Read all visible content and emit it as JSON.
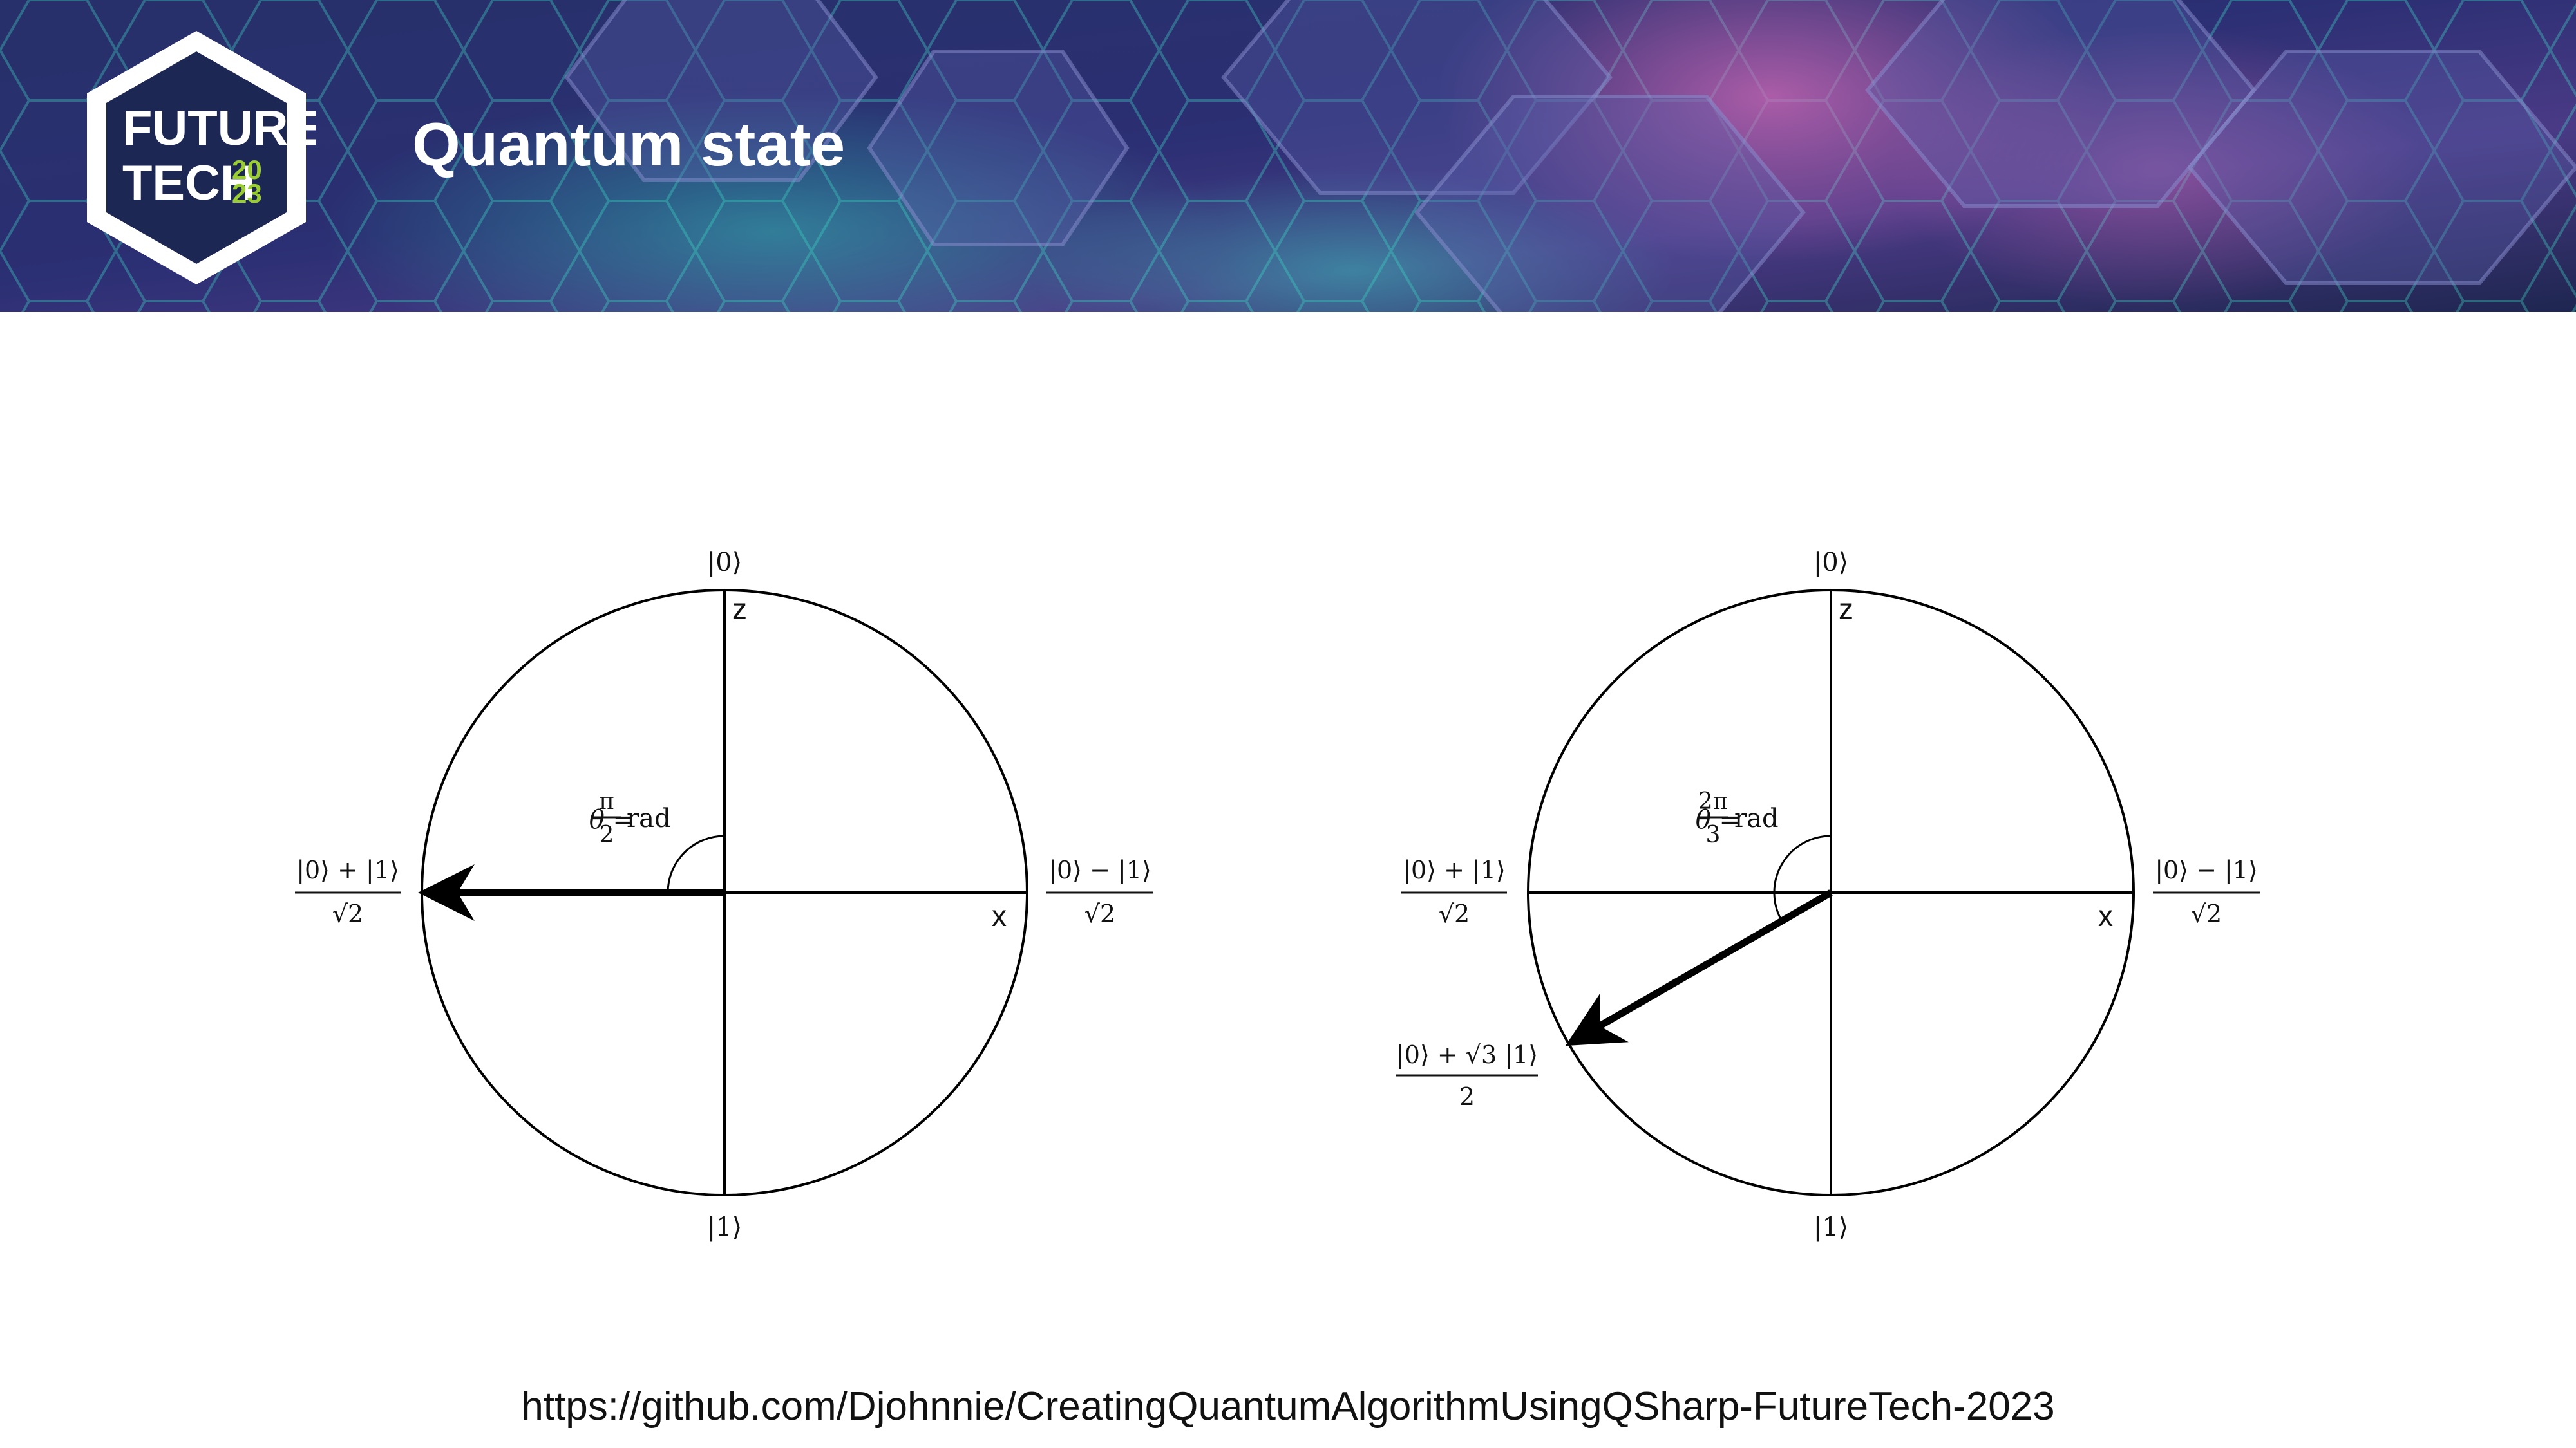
{
  "slide": {
    "title": "Quantum state",
    "source_url": "https://github.com/Djohnnie/CreatingQuantumAlgorithmUsingQSharp-FutureTech-2023"
  },
  "logo": {
    "line1": "FUTURE",
    "line2": "TECH",
    "year_top": "20",
    "year_bottom": "23",
    "accent_color": "#9acd32"
  },
  "banner": {
    "base_color": "#1f2a5a",
    "glow_color": "#3de0c0",
    "pink_color": "#c85bb0"
  },
  "diagrams": [
    {
      "angle_label": {
        "lhs": "θ =",
        "num": "π",
        "den": "2",
        "unit": "rad"
      },
      "state_angle_fraction_of_pi": 0.5,
      "top_label": "|0⟩",
      "bottom_label": "|1⟩",
      "z_label": "z",
      "x_label": "x",
      "left_label": {
        "num": "|0⟩ + |1⟩",
        "den": "√2"
      },
      "right_label": {
        "num": "|0⟩ − |1⟩",
        "den": "√2"
      },
      "vector_label": null
    },
    {
      "angle_label": {
        "lhs": "θ =",
        "num": "2π",
        "den": "3",
        "unit": "rad"
      },
      "state_angle_fraction_of_pi": 0.6667,
      "top_label": "|0⟩",
      "bottom_label": "|1⟩",
      "z_label": "z",
      "x_label": "x",
      "left_label": {
        "num": "|0⟩ + |1⟩",
        "den": "√2"
      },
      "right_label": {
        "num": "|0⟩ − |1⟩",
        "den": "√2"
      },
      "vector_label": {
        "num": "|0⟩ + √3 |1⟩",
        "den": "2"
      }
    }
  ]
}
